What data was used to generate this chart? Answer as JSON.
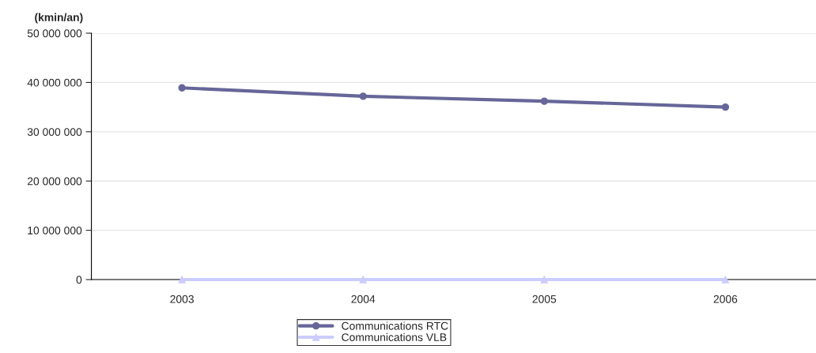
{
  "chart_data": {
    "type": "line",
    "ylabel": "(kmin/an)",
    "categories": [
      "2003",
      "2004",
      "2005",
      "2006"
    ],
    "series": [
      {
        "name": "Communications RTC",
        "color": "#666699",
        "marker": "circle",
        "values": [
          38900000,
          37200000,
          36200000,
          35000000
        ]
      },
      {
        "name": "Communications VLB",
        "color": "#ccccff",
        "marker": "triangle",
        "values": [
          0,
          0,
          0,
          0
        ]
      }
    ],
    "ylim": [
      0,
      50000000
    ],
    "yticks": [
      {
        "value": 0,
        "label": "0"
      },
      {
        "value": 10000000,
        "label": "10 000 000"
      },
      {
        "value": 20000000,
        "label": "20 000 000"
      },
      {
        "value": 30000000,
        "label": "30 000 000"
      },
      {
        "value": 40000000,
        "label": "40 000 000"
      },
      {
        "value": 50000000,
        "label": "50 000 000"
      }
    ],
    "grid": "y",
    "legend": "bottom",
    "line_style": "solid"
  }
}
